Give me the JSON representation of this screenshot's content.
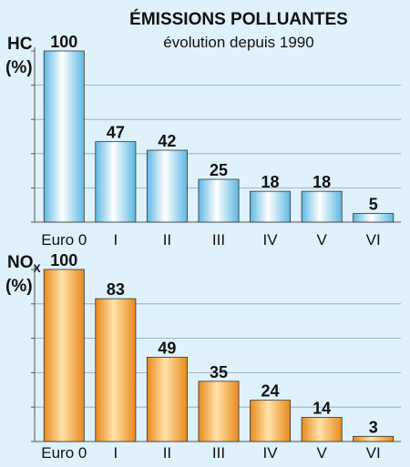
{
  "header": {
    "title": "ÉMISSIONS POLLUANTES",
    "subtitle": "évolution depuis 1990"
  },
  "chart_data": [
    {
      "type": "bar",
      "ylabel": "HC (%)",
      "categories": [
        "Euro 0",
        "I",
        "II",
        "III",
        "IV",
        "V",
        "VI"
      ],
      "values": [
        100,
        47,
        42,
        25,
        18,
        18,
        5
      ],
      "ylim": [
        0,
        100
      ],
      "grid": true,
      "bar_color": "#8fd0ee"
    },
    {
      "type": "bar",
      "ylabel": "NOx (%)",
      "categories": [
        "Euro 0",
        "I",
        "II",
        "III",
        "IV",
        "V",
        "VI"
      ],
      "values": [
        100,
        83,
        49,
        35,
        24,
        14,
        3
      ],
      "ylim": [
        0,
        100
      ],
      "grid": true,
      "bar_color": "#f2a440"
    }
  ],
  "labels": {
    "hc_main": "HC",
    "hc_unit": "(%)",
    "nox_main": "NO",
    "nox_sub": "X",
    "nox_unit": "(%)"
  }
}
